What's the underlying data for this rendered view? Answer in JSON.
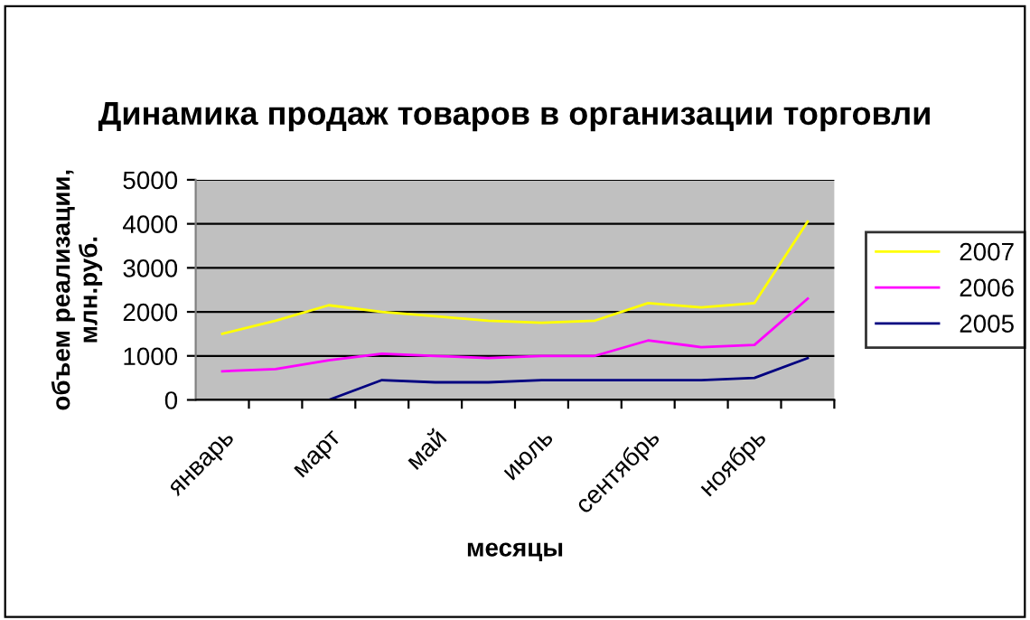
{
  "chart_data": {
    "type": "line",
    "title": "Динамика продаж товаров в организации торговли",
    "xlabel": "месяцы",
    "ylabel": "объем реализации,\nмлн.руб.",
    "categories": [
      "январь",
      null,
      "март",
      null,
      "май",
      null,
      "июль",
      null,
      "сентябрь",
      null,
      "ноябрь",
      null
    ],
    "series": [
      {
        "name": "2007",
        "color": "#ffff00",
        "values": [
          1500,
          1800,
          2150,
          2000,
          1900,
          1800,
          1750,
          1800,
          2200,
          2100,
          2200,
          4050
        ]
      },
      {
        "name": "2006",
        "color": "#ff00ff",
        "values": [
          650,
          700,
          900,
          1050,
          1000,
          950,
          1000,
          1000,
          1350,
          1200,
          1250,
          2300
        ]
      },
      {
        "name": "2005",
        "color": "#000080",
        "values": [
          null,
          null,
          0,
          450,
          400,
          400,
          450,
          450,
          450,
          450,
          500,
          950
        ]
      }
    ],
    "ylim": [
      0,
      5000
    ],
    "yticks": [
      0,
      1000,
      2000,
      3000,
      4000,
      5000
    ],
    "grid": "y",
    "legend": "right",
    "marker": "none",
    "line_style": "solid"
  }
}
